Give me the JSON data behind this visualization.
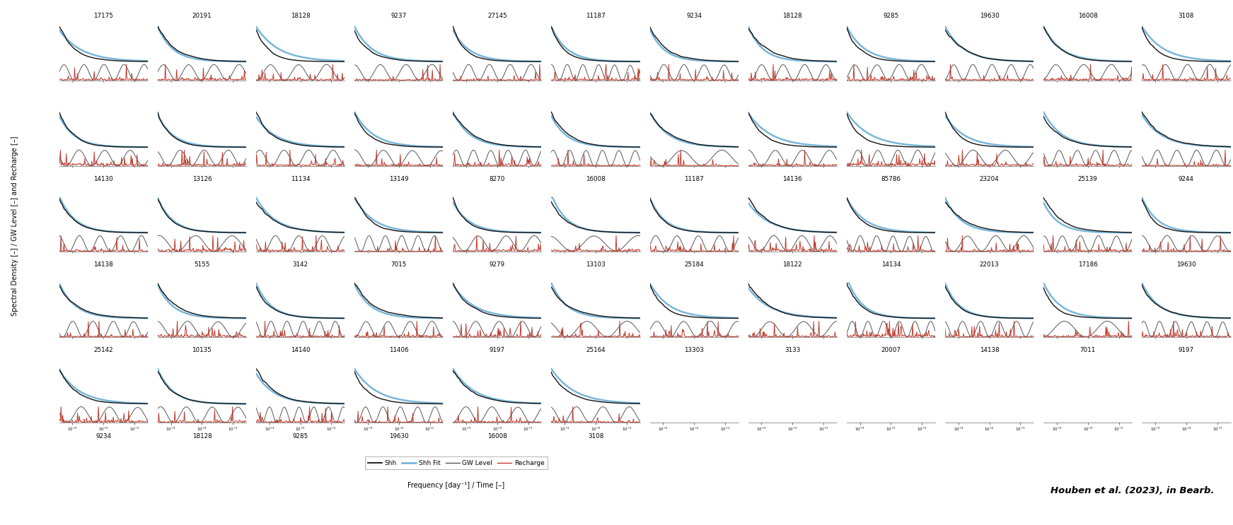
{
  "figsize": [
    17.43,
    7.43
  ],
  "dpi": 100,
  "background_color": "#ffffff",
  "colors": {
    "shh": "#111111",
    "shh_fit": "#6baed6",
    "gw_level": "#555555",
    "recharge": "#c0392b"
  },
  "lw": {
    "shh": 1.0,
    "shh_fit": 1.8,
    "gw_level": 0.7,
    "recharge": 0.7
  },
  "ylabel": "Spectral Density [–] / GW Level [–] and Recharge [–]",
  "xlabel": "Frequency [day⁻¹] / Time [–]",
  "citation": "Houben et al. (2023), in Bearb.",
  "all_rows": [
    [
      "17175",
      "20191",
      "18128",
      "9237",
      "27145",
      "11187",
      "9234",
      "18128",
      "9285",
      "19630",
      "16008",
      "3108"
    ],
    [
      "14130",
      "13126",
      "11134",
      "13149",
      "8270",
      "16008",
      "11187",
      "14136",
      "85786",
      "23204",
      "25139",
      "9244"
    ],
    [
      "14138",
      "5155",
      "3142",
      "7015",
      "9279",
      "13103",
      "25184",
      "18122",
      "14134",
      "22013",
      "17186",
      "19630"
    ],
    [
      "25142",
      "10135",
      "14140",
      "11406",
      "9197",
      "25164",
      "13303",
      "3133",
      "20007",
      "14138",
      "7011",
      "9197"
    ],
    [
      "9234",
      "18128",
      "9285",
      "19630",
      "16008",
      "3108",
      "",
      "",
      "",
      "",
      "",
      ""
    ]
  ],
  "seed": 42,
  "nrows": 5,
  "ncols": 12
}
